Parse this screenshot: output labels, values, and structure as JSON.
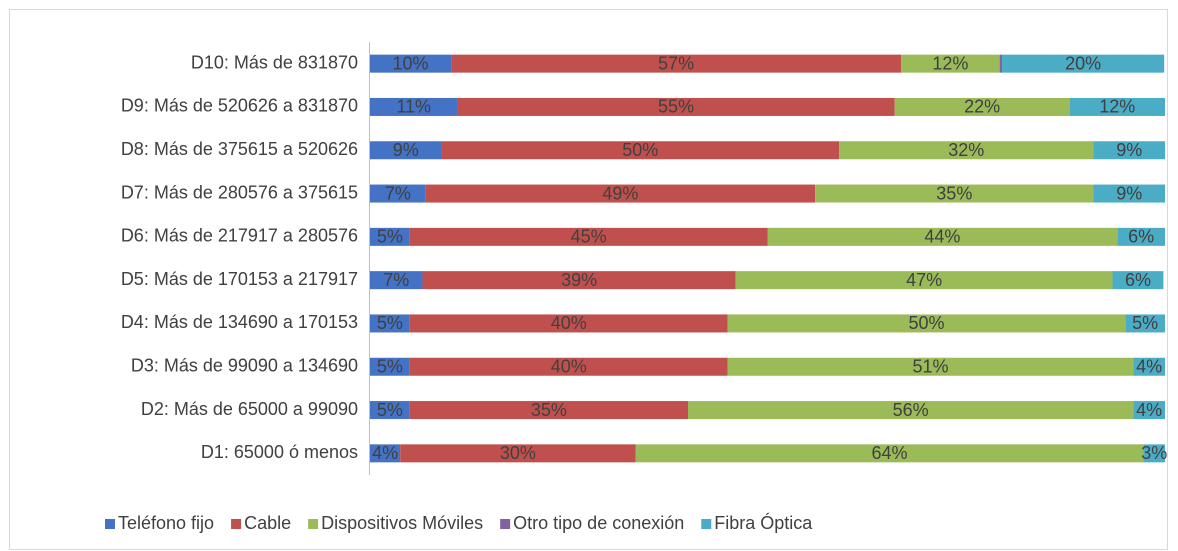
{
  "chart_data": {
    "type": "stacked-bar-horizontal",
    "categories": [
      "D10: Más de 831870",
      "D9: Más de 520626 a 831870",
      "D8: Más de 375615 a 520626",
      "D7: Más de 280576 a 375615",
      "D6: Más de 217917 a 280576",
      "D5: Más de 170153 a 217917",
      "D4: Más de 134690 a 170153",
      "D3: Más de 99090 a 134690",
      "D2: Más de 65000 a 99090",
      "D1: 65000 ó menos"
    ],
    "xlim": [
      0,
      100
    ],
    "legend": "bottom",
    "series": [
      {
        "name": "Teléfono fijo",
        "color": "#4472c4",
        "values": [
          10.2,
          11,
          9,
          7,
          5,
          6.6,
          5,
          5,
          5,
          3.8
        ],
        "value_labels": [
          "10%",
          "11%",
          "9%",
          "7%",
          "5%",
          "7%",
          "5%",
          "5%",
          "5%",
          "4%"
        ]
      },
      {
        "name": "Cable",
        "color": "#c0504d",
        "values": [
          56.6,
          55,
          50,
          49,
          45,
          39.4,
          40,
          40,
          35,
          29.6
        ],
        "value_labels": [
          "57%",
          "55%",
          "50%",
          "49%",
          "45%",
          "39%",
          "40%",
          "40%",
          "35%",
          "30%"
        ]
      },
      {
        "name": "Dispositivos Móviles",
        "color": "#9bbb59",
        "values": [
          12.4,
          22,
          32,
          35,
          44,
          47.4,
          50,
          51,
          56,
          63.9
        ],
        "value_labels": [
          "12%",
          "22%",
          "32%",
          "35%",
          "44%",
          "47%",
          "50%",
          "51%",
          "56%",
          "64%"
        ]
      },
      {
        "name": "Otro tipo de conexión",
        "color": "#8064a2",
        "values": [
          0.3,
          0,
          0,
          0,
          0,
          0,
          0,
          0,
          0,
          0
        ]
      },
      {
        "name": "Fibra Óptica",
        "color": "#4bacc6",
        "values": [
          20.4,
          12,
          9,
          9,
          6,
          6.4,
          5,
          4,
          4,
          2.7
        ],
        "value_labels": [
          "20%",
          "12%",
          "9%",
          "9%",
          "6%",
          "6%",
          "5%",
          "4%",
          "4%",
          "3%"
        ]
      }
    ]
  }
}
